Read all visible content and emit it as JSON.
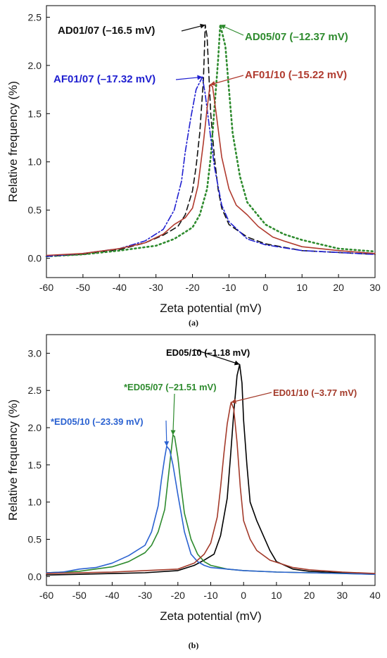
{
  "chart_data": [
    {
      "type": "line",
      "panel_label": "(a)",
      "xlabel": "Zeta potential (mV)",
      "ylabel": "Relative frequency (%)",
      "xlim": [
        -60,
        30
      ],
      "ylim": [
        -0.2,
        2.62
      ],
      "xticks": [
        -60,
        -50,
        -40,
        -30,
        -20,
        -10,
        0,
        10,
        20,
        30
      ],
      "yticks": [
        0.0,
        0.5,
        1.0,
        1.5,
        2.0,
        2.5
      ],
      "series": [
        {
          "name": "AD01/07",
          "color": "#111111",
          "style": "dashed",
          "points": [
            [
              -60,
              0.02
            ],
            [
              -50,
              0.04
            ],
            [
              -40,
              0.09
            ],
            [
              -33,
              0.16
            ],
            [
              -28,
              0.24
            ],
            [
              -24,
              0.33
            ],
            [
              -22,
              0.45
            ],
            [
              -20,
              0.7
            ],
            [
              -19,
              0.95
            ],
            [
              -18,
              1.3
            ],
            [
              -17,
              1.85
            ],
            [
              -16.5,
              2.42
            ],
            [
              -16,
              2.3
            ],
            [
              -15.5,
              1.9
            ],
            [
              -15,
              1.5
            ],
            [
              -14,
              1.05
            ],
            [
              -13,
              0.72
            ],
            [
              -12,
              0.52
            ],
            [
              -10,
              0.35
            ],
            [
              -5,
              0.22
            ],
            [
              0,
              0.15
            ],
            [
              10,
              0.08
            ],
            [
              20,
              0.06
            ],
            [
              30,
              0.04
            ]
          ]
        },
        {
          "name": "AD05/07",
          "color": "#2e8b2e",
          "style": "dotted",
          "points": [
            [
              -60,
              0.02
            ],
            [
              -50,
              0.04
            ],
            [
              -40,
              0.08
            ],
            [
              -30,
              0.13
            ],
            [
              -25,
              0.2
            ],
            [
              -20,
              0.32
            ],
            [
              -18,
              0.45
            ],
            [
              -16,
              0.72
            ],
            [
              -15,
              1.05
            ],
            [
              -14,
              1.55
            ],
            [
              -13,
              2.05
            ],
            [
              -12.4,
              2.42
            ],
            [
              -11,
              2.2
            ],
            [
              -10,
              1.75
            ],
            [
              -9,
              1.3
            ],
            [
              -7,
              0.85
            ],
            [
              -5,
              0.58
            ],
            [
              0,
              0.35
            ],
            [
              5,
              0.25
            ],
            [
              10,
              0.19
            ],
            [
              20,
              0.1
            ],
            [
              30,
              0.07
            ]
          ]
        },
        {
          "name": "AF01/07",
          "color": "#1f1fd0",
          "style": "dashdot",
          "points": [
            [
              -60,
              0.02
            ],
            [
              -50,
              0.05
            ],
            [
              -40,
              0.1
            ],
            [
              -33,
              0.18
            ],
            [
              -28,
              0.3
            ],
            [
              -25,
              0.5
            ],
            [
              -23,
              0.8
            ],
            [
              -22,
              1.1
            ],
            [
              -20.5,
              1.45
            ],
            [
              -19,
              1.75
            ],
            [
              -17.3,
              1.88
            ],
            [
              -16.5,
              1.7
            ],
            [
              -15.5,
              1.4
            ],
            [
              -14,
              0.95
            ],
            [
              -12,
              0.55
            ],
            [
              -10,
              0.38
            ],
            [
              -5,
              0.2
            ],
            [
              0,
              0.14
            ],
            [
              10,
              0.08
            ],
            [
              20,
              0.06
            ],
            [
              30,
              0.04
            ]
          ]
        },
        {
          "name": "AF01/10",
          "color": "#b03a2e",
          "style": "solid",
          "points": [
            [
              -60,
              0.03
            ],
            [
              -50,
              0.05
            ],
            [
              -40,
              0.1
            ],
            [
              -33,
              0.16
            ],
            [
              -28,
              0.25
            ],
            [
              -25,
              0.35
            ],
            [
              -22,
              0.42
            ],
            [
              -20,
              0.52
            ],
            [
              -18.5,
              0.75
            ],
            [
              -17,
              1.2
            ],
            [
              -16,
              1.55
            ],
            [
              -15.2,
              1.8
            ],
            [
              -14.5,
              1.78
            ],
            [
              -13.5,
              1.5
            ],
            [
              -12,
              1.05
            ],
            [
              -10,
              0.72
            ],
            [
              -8,
              0.55
            ],
            [
              -5,
              0.45
            ],
            [
              -2,
              0.33
            ],
            [
              2,
              0.22
            ],
            [
              5,
              0.18
            ],
            [
              10,
              0.12
            ],
            [
              20,
              0.08
            ],
            [
              30,
              0.05
            ]
          ]
        }
      ],
      "annotations": [
        {
          "text": "AD01/07 (–16.5 mV)",
          "series": "AD01/07",
          "peak": [
            -16.5,
            2.42
          ]
        },
        {
          "text": "AD05/07 (–12.37 mV)",
          "series": "AD05/07",
          "peak": [
            -12.4,
            2.42
          ]
        },
        {
          "text": "AF01/07 (–17.32 mV)",
          "series": "AF01/07",
          "peak": [
            -17.3,
            1.88
          ]
        },
        {
          "text": "AF01/10 (–15.22 mV)",
          "series": "AF01/10",
          "peak": [
            -15.2,
            1.8
          ]
        }
      ]
    },
    {
      "type": "line",
      "panel_label": "(b)",
      "xlabel": "Zeta potential (mV)",
      "ylabel": "Relative frequency (%)",
      "xlim": [
        -60,
        40
      ],
      "ylim": [
        -0.12,
        3.25
      ],
      "xticks": [
        -60,
        -50,
        -40,
        -30,
        -20,
        -10,
        0,
        10,
        20,
        30,
        40
      ],
      "yticks": [
        0.0,
        0.5,
        1.0,
        1.5,
        2.0,
        2.5,
        3.0
      ],
      "series": [
        {
          "name": "ED05/10 (black)",
          "color": "#000000",
          "style": "solid",
          "points": [
            [
              -60,
              0.02
            ],
            [
              -50,
              0.03
            ],
            [
              -40,
              0.04
            ],
            [
              -30,
              0.05
            ],
            [
              -20,
              0.08
            ],
            [
              -15,
              0.15
            ],
            [
              -12,
              0.22
            ],
            [
              -9,
              0.3
            ],
            [
              -7,
              0.55
            ],
            [
              -5,
              1.05
            ],
            [
              -4,
              1.6
            ],
            [
              -3,
              2.2
            ],
            [
              -2,
              2.7
            ],
            [
              -1.2,
              2.85
            ],
            [
              -0.5,
              2.6
            ],
            [
              0,
              2.1
            ],
            [
              1,
              1.5
            ],
            [
              2,
              1.0
            ],
            [
              4,
              0.75
            ],
            [
              6,
              0.55
            ],
            [
              8,
              0.35
            ],
            [
              10,
              0.2
            ],
            [
              15,
              0.1
            ],
            [
              20,
              0.07
            ],
            [
              30,
              0.05
            ],
            [
              40,
              0.03
            ]
          ]
        },
        {
          "name": "*ED05/07",
          "color": "#2e8b2e",
          "style": "solid",
          "points": [
            [
              -60,
              0.05
            ],
            [
              -50,
              0.07
            ],
            [
              -40,
              0.13
            ],
            [
              -35,
              0.2
            ],
            [
              -30,
              0.32
            ],
            [
              -28,
              0.42
            ],
            [
              -26,
              0.6
            ],
            [
              -24,
              0.9
            ],
            [
              -23,
              1.3
            ],
            [
              -22,
              1.7
            ],
            [
              -21.5,
              1.9
            ],
            [
              -21,
              1.88
            ],
            [
              -20,
              1.6
            ],
            [
              -19,
              1.2
            ],
            [
              -18,
              0.85
            ],
            [
              -16,
              0.5
            ],
            [
              -14,
              0.3
            ],
            [
              -12,
              0.2
            ],
            [
              -10,
              0.15
            ],
            [
              -5,
              0.1
            ],
            [
              0,
              0.08
            ],
            [
              10,
              0.06
            ],
            [
              20,
              0.05
            ],
            [
              30,
              0.04
            ],
            [
              40,
              0.03
            ]
          ]
        },
        {
          "name": "*ED05/10",
          "color": "#2b62d1",
          "style": "solid",
          "points": [
            [
              -60,
              0.05
            ],
            [
              -55,
              0.06
            ],
            [
              -50,
              0.1
            ],
            [
              -45,
              0.12
            ],
            [
              -40,
              0.18
            ],
            [
              -35,
              0.28
            ],
            [
              -30,
              0.42
            ],
            [
              -28,
              0.6
            ],
            [
              -26,
              0.95
            ],
            [
              -25,
              1.3
            ],
            [
              -24,
              1.6
            ],
            [
              -23.4,
              1.75
            ],
            [
              -22.5,
              1.7
            ],
            [
              -21.5,
              1.5
            ],
            [
              -20,
              1.1
            ],
            [
              -18,
              0.6
            ],
            [
              -16,
              0.3
            ],
            [
              -14,
              0.2
            ],
            [
              -12,
              0.15
            ],
            [
              -10,
              0.12
            ],
            [
              -5,
              0.1
            ],
            [
              0,
              0.08
            ],
            [
              10,
              0.06
            ],
            [
              20,
              0.05
            ],
            [
              40,
              0.03
            ]
          ]
        },
        {
          "name": "ED01/10",
          "color": "#a33a2a",
          "style": "solid",
          "points": [
            [
              -60,
              0.04
            ],
            [
              -50,
              0.05
            ],
            [
              -40,
              0.06
            ],
            [
              -30,
              0.08
            ],
            [
              -20,
              0.1
            ],
            [
              -15,
              0.18
            ],
            [
              -12,
              0.3
            ],
            [
              -10,
              0.45
            ],
            [
              -8,
              0.8
            ],
            [
              -7,
              1.2
            ],
            [
              -6,
              1.65
            ],
            [
              -5,
              2.05
            ],
            [
              -4,
              2.3
            ],
            [
              -3.8,
              2.34
            ],
            [
              -3,
              2.25
            ],
            [
              -2,
              1.8
            ],
            [
              -1,
              1.2
            ],
            [
              0,
              0.75
            ],
            [
              2,
              0.5
            ],
            [
              4,
              0.35
            ],
            [
              8,
              0.22
            ],
            [
              15,
              0.12
            ],
            [
              20,
              0.09
            ],
            [
              30,
              0.06
            ],
            [
              40,
              0.04
            ]
          ]
        }
      ],
      "annotations": [
        {
          "text": "ED05/10 (–1.18 mV)",
          "series": "ED05/10 (black)",
          "peak": [
            -1.2,
            2.85
          ]
        },
        {
          "text": "*ED05/07 (–21.51 mV)",
          "series": "*ED05/07",
          "peak": [
            -21.5,
            1.9
          ]
        },
        {
          "text": "ED01/10 (–3.77 mV)",
          "series": "ED01/10",
          "peak": [
            -3.8,
            2.34
          ]
        },
        {
          "text": "*ED05/10 (–23.39 mV)",
          "series": "*ED05/10",
          "peak": [
            -23.4,
            1.75
          ]
        }
      ]
    }
  ]
}
